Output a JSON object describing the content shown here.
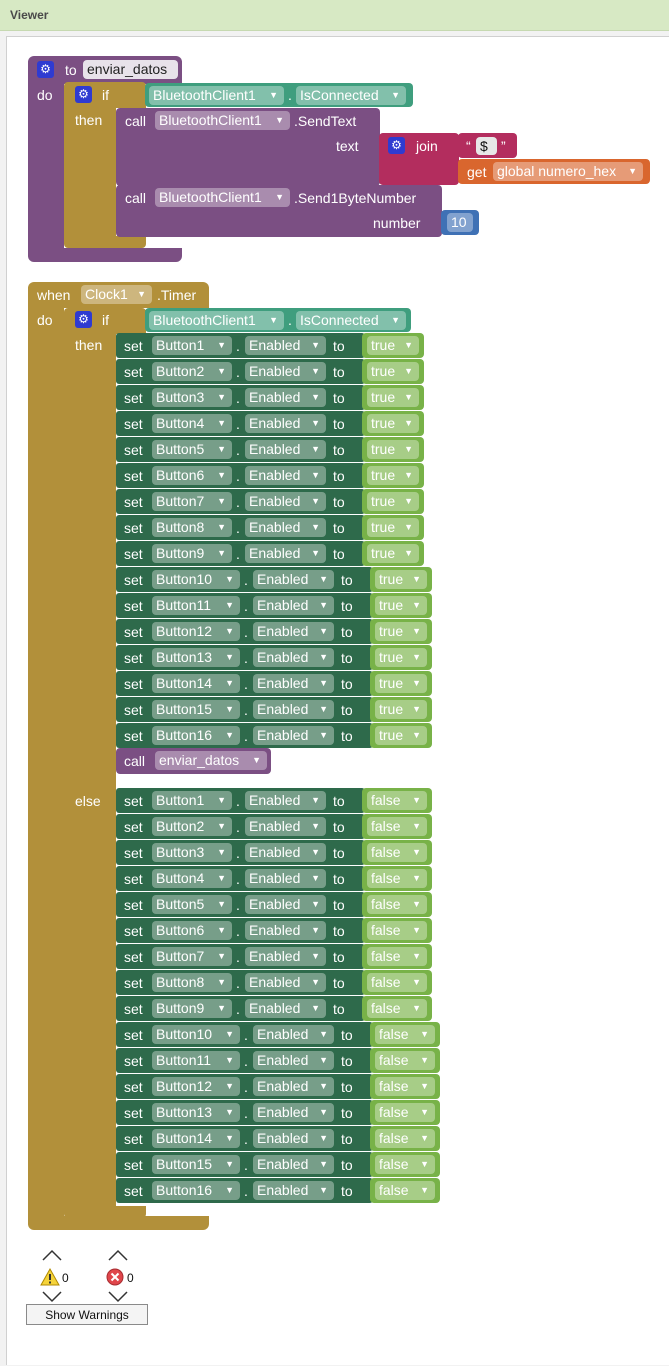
{
  "header": {
    "title": "Viewer"
  },
  "proc": {
    "to_label": "to",
    "name": "enviar_datos",
    "do_label": "do",
    "if_label": "if",
    "then_label": "then",
    "component": "BluetoothClient1",
    "is_connected": "IsConnected",
    "call_label": "call",
    "send_text": ".SendText",
    "text_label": "text",
    "join_label": "join",
    "string_value": "$",
    "get_label": "get",
    "global_var": "global numero_hex",
    "send_byte": ".Send1ByteNumber",
    "number_label": "number",
    "number_value": "10"
  },
  "event": {
    "when_label": "when",
    "component": "Clock1",
    "event_name": ".Timer",
    "do_label": "do",
    "if_label": "if",
    "then_label": "then",
    "else_label": "else",
    "bt_component": "BluetoothClient1",
    "is_connected": "IsConnected",
    "set_label": "set",
    "property": "Enabled",
    "to_label": "to",
    "call_label": "call",
    "call_proc": "enviar_datos",
    "then_rows": [
      {
        "button": "Button1",
        "value": "true"
      },
      {
        "button": "Button2",
        "value": "true"
      },
      {
        "button": "Button3",
        "value": "true"
      },
      {
        "button": "Button4",
        "value": "true"
      },
      {
        "button": "Button5",
        "value": "true"
      },
      {
        "button": "Button6",
        "value": "true"
      },
      {
        "button": "Button7",
        "value": "true"
      },
      {
        "button": "Button8",
        "value": "true"
      },
      {
        "button": "Button9",
        "value": "true"
      },
      {
        "button": "Button10",
        "value": "true"
      },
      {
        "button": "Button11",
        "value": "true"
      },
      {
        "button": "Button12",
        "value": "true"
      },
      {
        "button": "Button13",
        "value": "true"
      },
      {
        "button": "Button14",
        "value": "true"
      },
      {
        "button": "Button15",
        "value": "true"
      },
      {
        "button": "Button16",
        "value": "true"
      }
    ],
    "else_rows": [
      {
        "button": "Button1",
        "value": "false"
      },
      {
        "button": "Button2",
        "value": "false"
      },
      {
        "button": "Button3",
        "value": "false"
      },
      {
        "button": "Button4",
        "value": "false"
      },
      {
        "button": "Button5",
        "value": "false"
      },
      {
        "button": "Button6",
        "value": "false"
      },
      {
        "button": "Button7",
        "value": "false"
      },
      {
        "button": "Button8",
        "value": "false"
      },
      {
        "button": "Button9",
        "value": "false"
      },
      {
        "button": "Button10",
        "value": "false"
      },
      {
        "button": "Button11",
        "value": "false"
      },
      {
        "button": "Button12",
        "value": "false"
      },
      {
        "button": "Button13",
        "value": "false"
      },
      {
        "button": "Button14",
        "value": "false"
      },
      {
        "button": "Button15",
        "value": "false"
      },
      {
        "button": "Button16",
        "value": "false"
      }
    ]
  },
  "warnings": {
    "warning_count": "0",
    "error_count": "0",
    "show_warnings_label": "Show Warnings"
  },
  "colors": {
    "procedure": "#7b4f83",
    "control": "#b2903a",
    "component_event": "#b2903a",
    "component_method": "#7b4f83",
    "component_getter": "#3f9e7e",
    "component_setter": "#2e6a4b",
    "logic": "#78b248",
    "text": "#b32d5e",
    "math": "#3f71b5",
    "variable": "#d9662e"
  }
}
